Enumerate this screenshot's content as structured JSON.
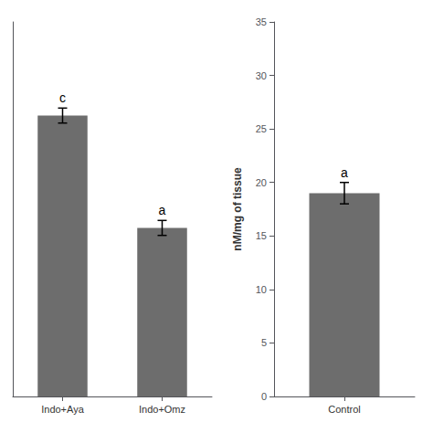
{
  "chart_data": [
    {
      "type": "bar",
      "categories": [
        "Indo+Aya",
        "Indo+Omz"
      ],
      "values": [
        21.5,
        18.5
      ],
      "errors": [
        0.2,
        0.2
      ],
      "annotations": [
        "c",
        "a"
      ],
      "color": "#6d6d6d",
      "ylim": [
        14,
        24
      ],
      "tick_labels": "x",
      "grid": false
    },
    {
      "type": "bar",
      "categories": [
        "Control"
      ],
      "values": [
        19.0
      ],
      "errors": [
        1.0
      ],
      "annotations": [
        "a"
      ],
      "color": "#6d6d6d",
      "ylim": [
        0,
        35
      ],
      "yticks": [
        0,
        5,
        10,
        15,
        20,
        25,
        30,
        35
      ],
      "ylabel": "nM/mg of tissue",
      "grid": false
    }
  ]
}
